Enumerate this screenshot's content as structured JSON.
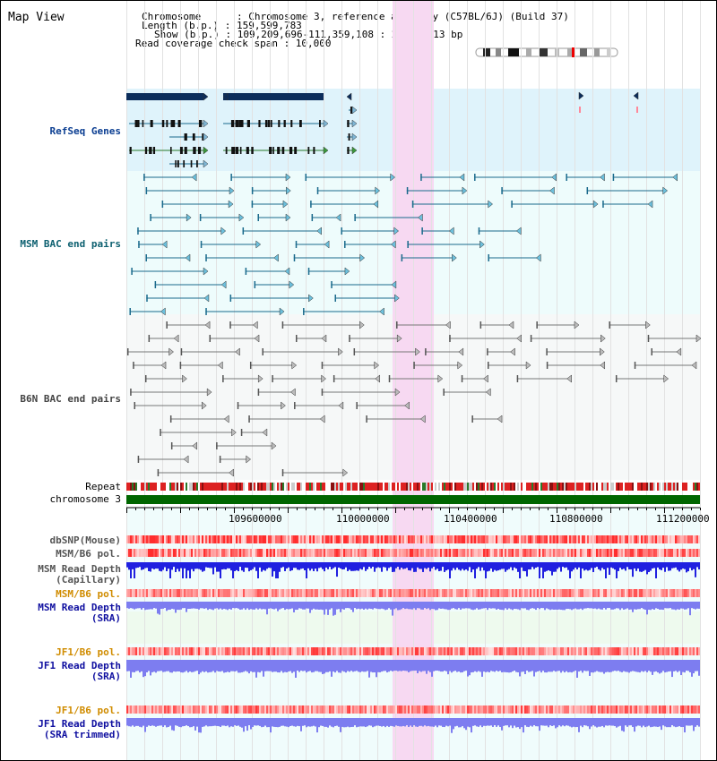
{
  "view_title": "Map View",
  "info": {
    "chromosome": "Chromosome      : Chromosome 3, reference assembly (C57BL/6J) (Build 37)",
    "length": "Length (b.p.) : 159,599,783",
    "show": "Show (b.p.) : 109,209,696-111,359,108 : 2,149,413 bp",
    "span": "Read coverage check span : 10,000"
  },
  "axis": {
    "ticks": [
      "109600000",
      "110000000",
      "110400000",
      "110800000",
      "111200000"
    ]
  },
  "tracks": {
    "refseq": "RefSeq Genes",
    "msm_bac": "MSM BAC end pairs",
    "b6n_bac": "B6N BAC end pairs",
    "repeat": "Repeat",
    "chromosome": "chromosome 3",
    "dbsnp": "dbSNP(Mouse)",
    "msm_pol": "MSM/B6 pol.",
    "msm_depth_cap_1": "MSM Read Depth",
    "msm_depth_cap_2": "(Capillary)",
    "msm_pol2": "MSM/B6 pol.",
    "msm_depth_sra_1": "MSM Read Depth",
    "msm_depth_sra_2": "(SRA)",
    "jf1_pol": "JF1/B6 pol.",
    "jf1_depth_1": "JF1 Read Depth",
    "jf1_depth_2": "(SRA)",
    "jf1_pol2": "JF1/B6 pol.",
    "jf1_trim_1": "JF1 Read Depth",
    "jf1_trim_2": "(SRA trimmed)"
  },
  "colors": {
    "refseq_bg": "#dff3fb",
    "bac_bg": "#eefcfc",
    "highlight": "#f7d9f2",
    "refseq_dark": "#0b2d5b",
    "msm_line": "#1a6a8c",
    "b6n_line": "#777777",
    "label_blue": "#0a3d91",
    "label_teal": "#0d6070",
    "label_gray": "#444444",
    "label_orange": "#d08c00",
    "label_navy": "#1010a0",
    "chromosome_bar": "#006600",
    "depth_dark": "#2020e0",
    "depth_light": "#7d7df0"
  }
}
